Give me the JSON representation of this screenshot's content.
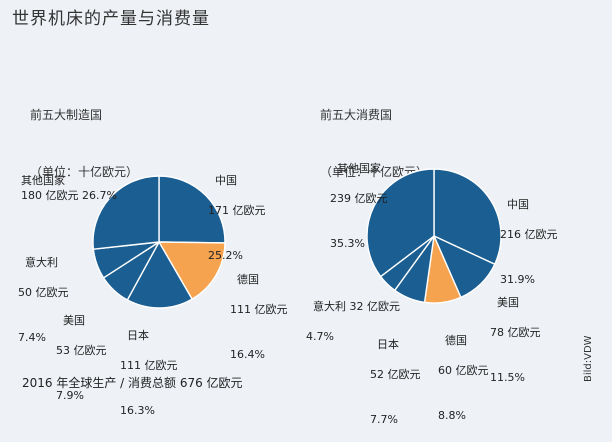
{
  "title": "世界机床的产量与消费量",
  "footer": "2016 年全球生产 / 消费总额 676 亿欧元",
  "credit": "Bild:VDW",
  "colors": {
    "main": "#1b5e92",
    "highlight": "#f5a34f",
    "divider": "#ffffff"
  },
  "chart_data": [
    {
      "type": "pie",
      "title": "前五大制造国",
      "subtitle": "（单位：十亿欧元）",
      "slices": [
        {
          "name": "中国",
          "amount": "171 亿欧元",
          "percent": "25.2%",
          "value": 25.2,
          "color": "#1b5e92"
        },
        {
          "name": "德国",
          "amount": "111 亿欧元",
          "percent": "16.4%",
          "value": 16.4,
          "color": "#f5a34f"
        },
        {
          "name": "日本",
          "amount": "111 亿欧元",
          "percent": "16.3%",
          "value": 16.3,
          "color": "#1b5e92"
        },
        {
          "name": "美国",
          "amount": "53 亿欧元",
          "percent": "7.9%",
          "value": 7.9,
          "color": "#1b5e92"
        },
        {
          "name": "意大利",
          "amount": "50 亿欧元",
          "percent": "7.4%",
          "value": 7.4,
          "color": "#1b5e92"
        },
        {
          "name": "其他国家",
          "amount": "180 亿欧元",
          "percent": "26.7%",
          "value": 26.7,
          "color": "#1b5e92"
        }
      ]
    },
    {
      "type": "pie",
      "title": "前五大消费国",
      "subtitle": "（单位：十亿欧元）",
      "slices": [
        {
          "name": "中国",
          "amount": "216 亿欧元",
          "percent": "31.9%",
          "value": 31.9,
          "color": "#1b5e92"
        },
        {
          "name": "美国",
          "amount": "78 亿欧元",
          "percent": "11.5%",
          "value": 11.5,
          "color": "#1b5e92"
        },
        {
          "name": "德国",
          "amount": "60 亿欧元",
          "percent": "8.8%",
          "value": 8.8,
          "color": "#f5a34f"
        },
        {
          "name": "日本",
          "amount": "52 亿欧元",
          "percent": "7.7%",
          "value": 7.7,
          "color": "#1b5e92"
        },
        {
          "name": "意大利",
          "amount": "32 亿欧元",
          "percent": "4.7%",
          "value": 4.7,
          "color": "#1b5e92"
        },
        {
          "name": "其他国家",
          "amount": "239 亿欧元",
          "percent": "35.3%",
          "value": 35.3,
          "color": "#1b5e92"
        }
      ]
    }
  ]
}
